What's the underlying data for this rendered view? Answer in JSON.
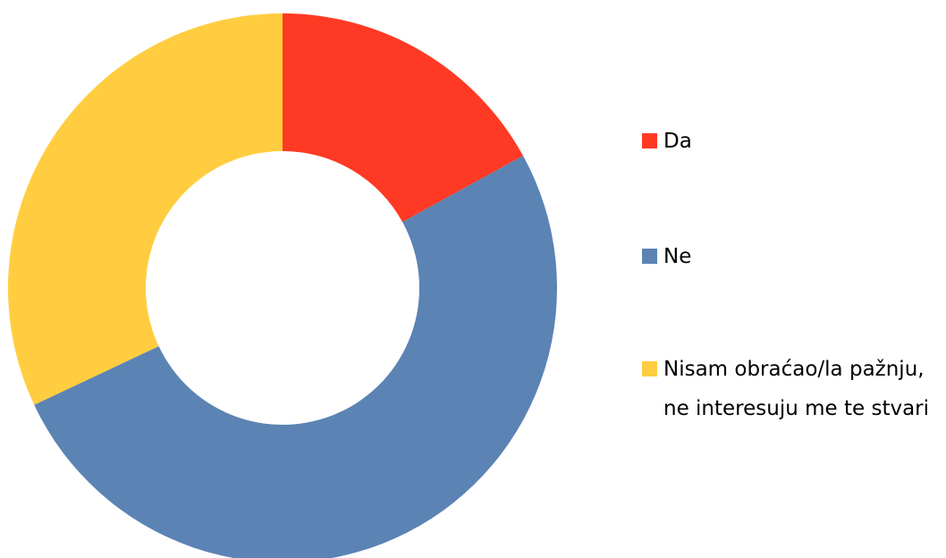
{
  "chart_data": {
    "type": "donut",
    "categories": [
      "Da",
      "Ne",
      "Nisam obraćao/la pažnju, ne interesuju me te stvari"
    ],
    "values": [
      17,
      51,
      32
    ],
    "colors": [
      "#ff3a24",
      "#5b83b4",
      "#ffcd3f"
    ],
    "legend": "right"
  }
}
